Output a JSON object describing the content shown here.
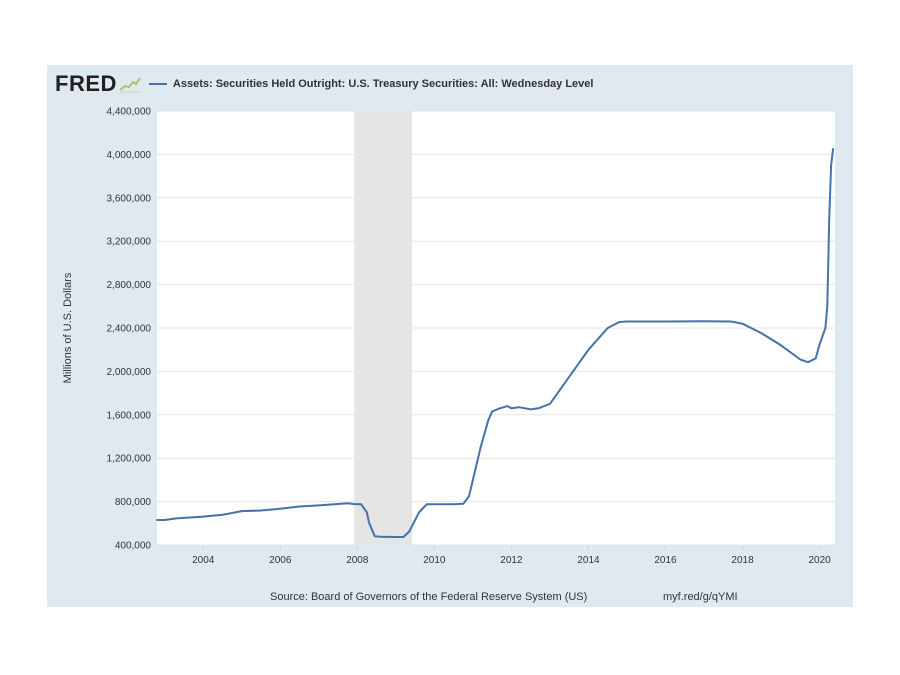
{
  "brand": {
    "logo_text": "FRED",
    "series_color": "#4572a7",
    "recession_color": "#e5e5e5"
  },
  "footer": {
    "source": "Source: Board of Governors of the Federal Reserve System (US)",
    "short_url": "myf.red/g/qYMI"
  },
  "chart_data": {
    "type": "line",
    "title": "",
    "xlabel": "",
    "ylabel": "Millions of U.S. Dollars",
    "xlim": [
      2002.8,
      2020.4
    ],
    "ylim": [
      400000,
      4400000
    ],
    "x_ticks": [
      2004,
      2006,
      2008,
      2010,
      2012,
      2014,
      2016,
      2018,
      2020
    ],
    "x_tick_labels": [
      "2004",
      "2006",
      "2008",
      "2010",
      "2012",
      "2014",
      "2016",
      "2018",
      "2020"
    ],
    "y_ticks": [
      400000,
      800000,
      1200000,
      1600000,
      2000000,
      2400000,
      2800000,
      3200000,
      3600000,
      4000000,
      4400000
    ],
    "y_tick_labels": [
      "400,000",
      "800,000",
      "1,200,000",
      "1,600,000",
      "2,000,000",
      "2,400,000",
      "2,800,000",
      "3,200,000",
      "3,600,000",
      "4,000,000",
      "4,400,000"
    ],
    "grid": true,
    "recessions": [
      {
        "start": 2007.92,
        "end": 2009.42
      }
    ],
    "series": [
      {
        "name": "Assets: Securities Held Outright: U.S. Treasury Securities: All: Wednesday Level",
        "color": "#4572a7",
        "x": [
          2002.8,
          2003.0,
          2003.3,
          2004.0,
          2004.5,
          2005.0,
          2005.5,
          2006.0,
          2006.5,
          2007.0,
          2007.5,
          2007.75,
          2007.9,
          2008.1,
          2008.25,
          2008.3,
          2008.45,
          2008.6,
          2008.8,
          2009.0,
          2009.2,
          2009.35,
          2009.6,
          2009.8,
          2010.0,
          2010.5,
          2010.75,
          2010.9,
          2011.0,
          2011.2,
          2011.4,
          2011.5,
          2011.7,
          2011.9,
          2012.0,
          2012.2,
          2012.5,
          2012.7,
          2013.0,
          2013.5,
          2014.0,
          2014.5,
          2014.8,
          2015.0,
          2016.0,
          2017.0,
          2017.7,
          2018.0,
          2018.5,
          2019.0,
          2019.5,
          2019.7,
          2019.9,
          2020.0,
          2020.15,
          2020.2,
          2020.25,
          2020.3,
          2020.35
        ],
        "values": [
          630000,
          630000,
          645000,
          662000,
          678000,
          712000,
          718000,
          735000,
          755000,
          765000,
          778000,
          785000,
          778000,
          775000,
          700000,
          610000,
          480000,
          476000,
          475000,
          474000,
          474000,
          525000,
          700000,
          775000,
          776000,
          776000,
          780000,
          850000,
          1000000,
          1300000,
          1550000,
          1630000,
          1660000,
          1680000,
          1660000,
          1670000,
          1650000,
          1660000,
          1700000,
          1950000,
          2200000,
          2400000,
          2455000,
          2460000,
          2460000,
          2462000,
          2460000,
          2440000,
          2350000,
          2240000,
          2110000,
          2085000,
          2120000,
          2250000,
          2400000,
          2600000,
          3400000,
          3900000,
          4050000
        ]
      }
    ]
  }
}
